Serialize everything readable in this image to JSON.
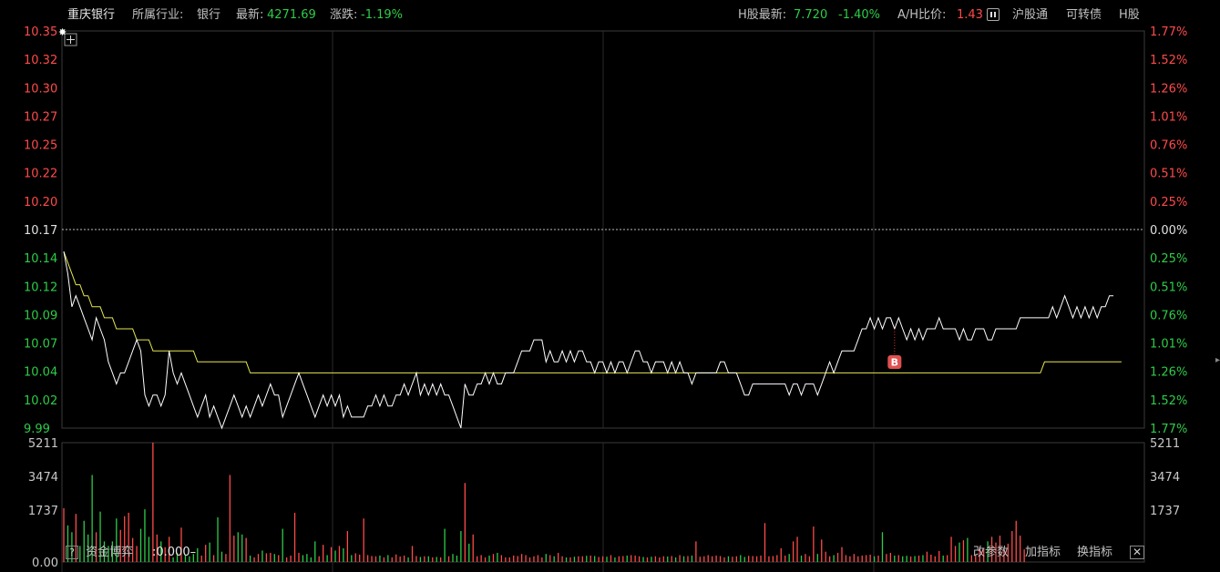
{
  "header": {
    "stock_name": "重庆银行",
    "industry_label": "所属行业:",
    "industry_value": "银行",
    "latest_label": "最新:",
    "latest_value": "4271.69",
    "change_label": "涨跌:",
    "change_value": "-1.19%",
    "h_label": "H股最新:",
    "h_price": "7.720",
    "h_change": "-1.40%",
    "ah_label": "A/H比价:",
    "ah_value": "1.43",
    "btn_hgt": "沪股通",
    "btn_convertible": "可转债",
    "btn_hshare": "H股"
  },
  "bottom": {
    "q_mark": "?",
    "flow_label": "资金博弈",
    "flow_value": ":0.000–",
    "btn_params": "改参数",
    "btn_add": "加指标",
    "btn_switch": "换指标",
    "close_mark": "✕"
  },
  "marker_label": "B",
  "colors": {
    "up": "#ff4a4a",
    "down": "#2ecc48",
    "price_line": "#ffffff",
    "avg_line": "#e6e650",
    "grid": "#2a2a2a",
    "border": "#3a3a3a"
  },
  "chart_data": {
    "type": "line",
    "price_ticks": [
      {
        "v": "10.35",
        "p": "1.77%",
        "c": "up"
      },
      {
        "v": "10.32",
        "p": "1.52%",
        "c": "up"
      },
      {
        "v": "10.30",
        "p": "1.26%",
        "c": "up"
      },
      {
        "v": "10.27",
        "p": "1.01%",
        "c": "up"
      },
      {
        "v": "10.25",
        "p": "0.76%",
        "c": "up"
      },
      {
        "v": "10.22",
        "p": "0.51%",
        "c": "up"
      },
      {
        "v": "10.20",
        "p": "0.25%",
        "c": "up"
      },
      {
        "v": "10.17",
        "p": "0.00%",
        "c": "flat"
      },
      {
        "v": "10.14",
        "p": "0.25%",
        "c": "down"
      },
      {
        "v": "10.12",
        "p": "0.51%",
        "c": "down"
      },
      {
        "v": "10.09",
        "p": "0.76%",
        "c": "down"
      },
      {
        "v": "10.07",
        "p": "1.01%",
        "c": "down"
      },
      {
        "v": "10.04",
        "p": "1.26%",
        "c": "down"
      },
      {
        "v": "10.02",
        "p": "1.52%",
        "c": "down"
      },
      {
        "v": "9.99",
        "p": "1.77%",
        "c": "down"
      }
    ],
    "prev_close": 10.17,
    "ylim": [
      9.99,
      10.35
    ],
    "volume_ticks": [
      "5211",
      "3474",
      "1737",
      "0.00"
    ],
    "volume_max": 5211,
    "marker_index": 205,
    "price": [
      10.15,
      10.13,
      10.1,
      10.11,
      10.1,
      10.09,
      10.08,
      10.07,
      10.09,
      10.08,
      10.07,
      10.05,
      10.04,
      10.03,
      10.04,
      10.04,
      10.05,
      10.06,
      10.07,
      10.06,
      10.02,
      10.01,
      10.02,
      10.02,
      10.01,
      10.02,
      10.06,
      10.04,
      10.03,
      10.04,
      10.03,
      10.02,
      10.01,
      10.0,
      10.01,
      10.02,
      10.0,
      10.01,
      10.0,
      9.99,
      10.0,
      10.01,
      10.02,
      10.01,
      10.0,
      10.01,
      10.0,
      10.01,
      10.02,
      10.01,
      10.02,
      10.03,
      10.02,
      10.02,
      10.0,
      10.01,
      10.02,
      10.03,
      10.04,
      10.03,
      10.02,
      10.01,
      10.0,
      10.01,
      10.02,
      10.01,
      10.02,
      10.01,
      10.02,
      10.0,
      10.01,
      10.0,
      10.0,
      10.0,
      10.0,
      10.01,
      10.01,
      10.02,
      10.01,
      10.02,
      10.01,
      10.01,
      10.02,
      10.02,
      10.03,
      10.02,
      10.03,
      10.04,
      10.02,
      10.03,
      10.02,
      10.03,
      10.02,
      10.03,
      10.02,
      10.02,
      10.01,
      10.0,
      9.99,
      10.03,
      10.02,
      10.02,
      10.03,
      10.03,
      10.04,
      10.03,
      10.04,
      10.03,
      10.03,
      10.04,
      10.04,
      10.04,
      10.05,
      10.06,
      10.06,
      10.06,
      10.07,
      10.07,
      10.07,
      10.05,
      10.06,
      10.05,
      10.05,
      10.06,
      10.05,
      10.06,
      10.05,
      10.06,
      10.06,
      10.05,
      10.05,
      10.04,
      10.05,
      10.05,
      10.04,
      10.05,
      10.04,
      10.05,
      10.05,
      10.04,
      10.05,
      10.06,
      10.06,
      10.05,
      10.05,
      10.04,
      10.05,
      10.05,
      10.05,
      10.04,
      10.05,
      10.04,
      10.05,
      10.04,
      10.04,
      10.03,
      10.04,
      10.04,
      10.04,
      10.04,
      10.04,
      10.04,
      10.05,
      10.05,
      10.04,
      10.04,
      10.04,
      10.03,
      10.02,
      10.02,
      10.03,
      10.03,
      10.03,
      10.03,
      10.03,
      10.03,
      10.03,
      10.03,
      10.03,
      10.02,
      10.03,
      10.03,
      10.02,
      10.03,
      10.03,
      10.03,
      10.02,
      10.03,
      10.04,
      10.05,
      10.04,
      10.05,
      10.06,
      10.06,
      10.06,
      10.06,
      10.07,
      10.08,
      10.08,
      10.09,
      10.08,
      10.09,
      10.08,
      10.09,
      10.09,
      10.08,
      10.09,
      10.08,
      10.07,
      10.08,
      10.07,
      10.08,
      10.07,
      10.08,
      10.08,
      10.08,
      10.09,
      10.08,
      10.08,
      10.08,
      10.08,
      10.07,
      10.08,
      10.07,
      10.07,
      10.08,
      10.08,
      10.08,
      10.07,
      10.07,
      10.08,
      10.08,
      10.08,
      10.08,
      10.08,
      10.08,
      10.09,
      10.09,
      10.09,
      10.09,
      10.09,
      10.09,
      10.09,
      10.09,
      10.1,
      10.09,
      10.1,
      10.11,
      10.1,
      10.09,
      10.1,
      10.09,
      10.1,
      10.09,
      10.1,
      10.09,
      10.1,
      10.1,
      10.11,
      10.11
    ],
    "average": [
      10.15,
      10.14,
      10.13,
      10.12,
      10.12,
      10.11,
      10.11,
      10.1,
      10.1,
      10.1,
      10.09,
      10.09,
      10.09,
      10.08,
      10.08,
      10.08,
      10.08,
      10.08,
      10.07,
      10.07,
      10.07,
      10.07,
      10.06,
      10.06,
      10.06,
      10.06,
      10.06,
      10.06,
      10.06,
      10.06,
      10.06,
      10.06,
      10.06,
      10.05,
      10.05,
      10.05,
      10.05,
      10.05,
      10.05,
      10.05,
      10.05,
      10.05,
      10.05,
      10.05,
      10.05,
      10.05,
      10.04,
      10.04,
      10.04,
      10.04,
      10.04,
      10.04,
      10.04,
      10.04,
      10.04,
      10.04,
      10.04,
      10.04,
      10.04,
      10.04,
      10.04,
      10.04,
      10.04,
      10.04,
      10.04,
      10.04,
      10.04,
      10.04,
      10.04,
      10.04,
      10.04,
      10.04,
      10.04,
      10.04,
      10.04,
      10.04,
      10.04,
      10.04,
      10.04,
      10.04,
      10.04,
      10.04,
      10.04,
      10.04,
      10.04,
      10.04,
      10.04,
      10.04,
      10.04,
      10.04,
      10.04,
      10.04,
      10.04,
      10.04,
      10.04,
      10.04,
      10.04,
      10.04,
      10.04,
      10.04,
      10.04,
      10.04,
      10.04,
      10.04,
      10.04,
      10.04,
      10.04,
      10.04,
      10.04,
      10.04,
      10.04,
      10.04,
      10.04,
      10.04,
      10.04,
      10.04,
      10.04,
      10.04,
      10.04,
      10.04,
      10.04,
      10.04,
      10.04,
      10.04,
      10.04,
      10.04,
      10.04,
      10.04,
      10.04,
      10.04,
      10.04,
      10.04,
      10.04,
      10.04,
      10.04,
      10.04,
      10.04,
      10.04,
      10.04,
      10.04,
      10.04,
      10.04,
      10.04,
      10.04,
      10.04,
      10.04,
      10.04,
      10.04,
      10.04,
      10.04,
      10.04,
      10.04,
      10.04,
      10.04,
      10.04,
      10.04,
      10.04,
      10.04,
      10.04,
      10.04,
      10.04,
      10.04,
      10.04,
      10.04,
      10.04,
      10.04,
      10.04,
      10.04,
      10.04,
      10.04,
      10.04,
      10.04,
      10.04,
      10.04,
      10.04,
      10.04,
      10.04,
      10.04,
      10.04,
      10.04,
      10.04,
      10.04,
      10.04,
      10.04,
      10.04,
      10.04,
      10.04,
      10.04,
      10.04,
      10.04,
      10.04,
      10.04,
      10.04,
      10.04,
      10.04,
      10.04,
      10.04,
      10.04,
      10.04,
      10.04,
      10.04,
      10.04,
      10.04,
      10.04,
      10.04,
      10.04,
      10.04,
      10.04,
      10.04,
      10.04,
      10.04,
      10.04,
      10.04,
      10.04,
      10.04,
      10.04,
      10.04,
      10.04,
      10.04,
      10.04,
      10.04,
      10.04,
      10.04,
      10.04,
      10.04,
      10.04,
      10.04,
      10.04,
      10.04,
      10.04,
      10.04,
      10.04,
      10.04,
      10.04,
      10.04,
      10.04,
      10.04,
      10.04,
      10.04,
      10.04,
      10.04,
      10.04,
      10.05,
      10.05,
      10.05,
      10.05,
      10.05,
      10.05,
      10.05,
      10.05,
      10.05,
      10.05,
      10.05,
      10.05,
      10.05,
      10.05,
      10.05,
      10.05,
      10.05,
      10.05,
      10.05,
      10.05
    ],
    "volume": [
      2350,
      1600,
      1300,
      2100,
      700,
      1800,
      1200,
      3800,
      1300,
      2200,
      900,
      700,
      900,
      1900,
      1400,
      2000,
      2150,
      1050,
      700,
      1450,
      2300,
      1100,
      5211,
      1200,
      900,
      650,
      1100,
      200,
      400,
      1500,
      300,
      250,
      350,
      600,
      280,
      750,
      850,
      300,
      1950,
      450,
      350,
      3800,
      1150,
      1300,
      1200,
      1050,
      280,
      200,
      350,
      500,
      380,
      400,
      350,
      300,
      1450,
      200,
      280,
      2150,
      400,
      300,
      350,
      200,
      900,
      250,
      750,
      300,
      650,
      500,
      700,
      600,
      1350,
      300,
      380,
      320,
      1900,
      300,
      260,
      250,
      280,
      200,
      300,
      200,
      330,
      240,
      280,
      200,
      700,
      260,
      220,
      250,
      250,
      200,
      220,
      200,
      1450,
      250,
      350,
      280,
      1350,
      3450,
      800,
      1200,
      250,
      300,
      200,
      280,
      350,
      400,
      300,
      200,
      200,
      280,
      260,
      350,
      300,
      200,
      250,
      300,
      200,
      350,
      300,
      250,
      400,
      250,
      200,
      200,
      230,
      250,
      250,
      270,
      280,
      260,
      220,
      250,
      230,
      300,
      200,
      250,
      260,
      280,
      300,
      280,
      250,
      220,
      200,
      230,
      250,
      200,
      250,
      240,
      260,
      200,
      300,
      250,
      260,
      280,
      900,
      230,
      250,
      300,
      250,
      280,
      260,
      200,
      250,
      230,
      250,
      300,
      220,
      270,
      260,
      250,
      280,
      1700,
      250,
      260,
      300,
      600,
      280,
      350,
      900,
      1100,
      280,
      350,
      250,
      1550,
      350,
      980,
      450,
      250,
      300,
      400,
      650,
      300,
      250,
      350,
      250,
      280,
      300,
      320,
      250,
      280,
      1300,
      350,
      400,
      280,
      300,
      250,
      270,
      240,
      260,
      280,
      300,
      450,
      320,
      250,
      480,
      280,
      300,
      1100,
      700,
      850,
      950,
      1050,
      300,
      300,
      650,
      600,
      900,
      1100,
      850,
      1150,
      650,
      800,
      1350,
      1800,
      1150,
      550
    ]
  }
}
